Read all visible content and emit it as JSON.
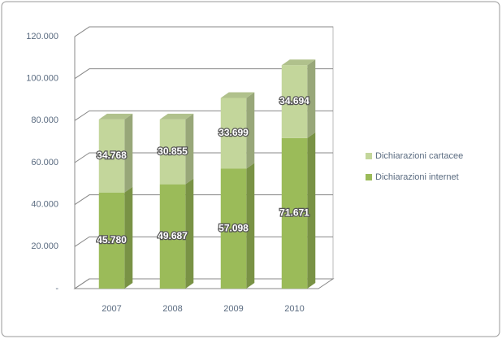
{
  "chart_data": {
    "type": "bar",
    "stacked": true,
    "categories": [
      "2007",
      "2008",
      "2009",
      "2010"
    ],
    "series": [
      {
        "name": "Dichiarazioni internet",
        "color": "#9bbb59",
        "values": [
          45780,
          49687,
          57098,
          71671
        ],
        "value_labels": [
          "45.780",
          "49.687",
          "57.098",
          "71.671"
        ]
      },
      {
        "name": "Dichiarazioni cartacee",
        "color": "#c3d69b",
        "values": [
          34768,
          30855,
          33699,
          34694
        ],
        "value_labels": [
          "34.768",
          "30.855",
          "33.699",
          "34.694"
        ]
      }
    ],
    "ylim": [
      0,
      120000
    ],
    "yticks": [
      {
        "value": 0,
        "label": "-"
      },
      {
        "value": 20000,
        "label": "20.000"
      },
      {
        "value": 40000,
        "label": "40.000"
      },
      {
        "value": 60000,
        "label": "60.000"
      },
      {
        "value": 80000,
        "label": "80.000"
      },
      {
        "value": 100000,
        "label": "100.000"
      },
      {
        "value": 120000,
        "label": "120.000"
      }
    ],
    "grid": true,
    "legend": "right"
  }
}
